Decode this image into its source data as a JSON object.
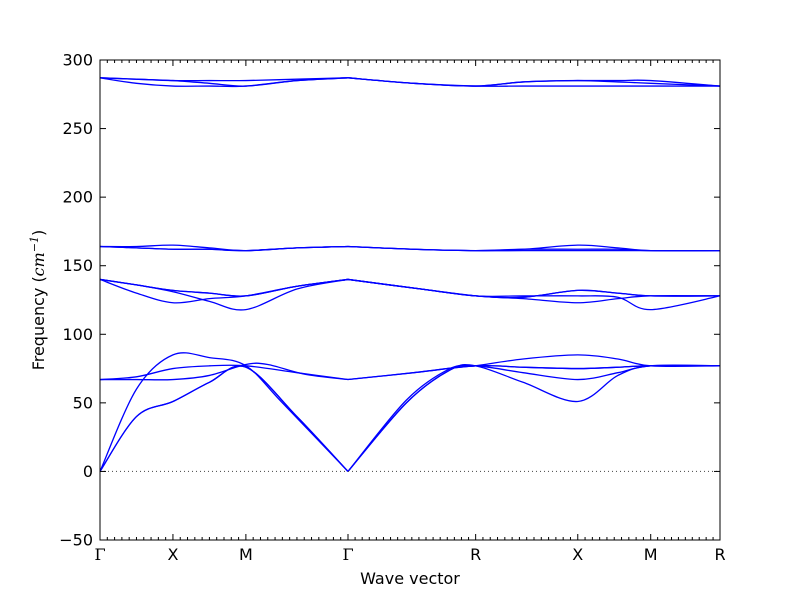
{
  "chart_data": {
    "type": "line",
    "title": "",
    "xlabel": "Wave vector",
    "ylabel_prefix": "Frequency (",
    "ylabel_unit_base": "cm",
    "ylabel_unit_exp": "−1",
    "ylabel_suffix": ")",
    "ylim": [
      -50,
      300
    ],
    "yticks": [
      -50,
      0,
      50,
      100,
      150,
      200,
      250,
      300
    ],
    "ytick_labels": [
      "−50",
      "0",
      "50",
      "100",
      "150",
      "200",
      "250",
      "300"
    ],
    "xlim": [
      0,
      8.5
    ],
    "xticks": [
      0,
      1,
      2,
      3.4,
      5.15,
      6.55,
      7.55,
      8.5
    ],
    "xtick_labels": [
      "Γ",
      "X",
      "M",
      "Γ",
      "R",
      "X",
      "M",
      "R"
    ],
    "grid": false,
    "legend": "none",
    "line_color": "#0000ff",
    "zero_line": 0,
    "bands": [
      [
        [
          0,
          0
        ],
        [
          0.5,
          40
        ],
        [
          1,
          51
        ],
        [
          1.5,
          65
        ],
        [
          2,
          76
        ],
        [
          2.7,
          40
        ],
        [
          3.4,
          0
        ],
        [
          4.2,
          50
        ],
        [
          4.8,
          74
        ],
        [
          5.15,
          77
        ],
        [
          5.8,
          65
        ],
        [
          6.55,
          51
        ],
        [
          7.1,
          70
        ],
        [
          7.55,
          77
        ],
        [
          8.5,
          77
        ]
      ],
      [
        [
          0,
          0
        ],
        [
          0.5,
          40
        ],
        [
          1,
          51
        ],
        [
          1.5,
          65
        ],
        [
          2,
          76
        ],
        [
          2.7,
          40
        ],
        [
          3.4,
          0
        ],
        [
          4.2,
          50
        ],
        [
          4.8,
          74
        ],
        [
          5.15,
          77
        ],
        [
          5.8,
          72
        ],
        [
          6.55,
          67
        ],
        [
          7.1,
          72
        ],
        [
          7.55,
          77
        ],
        [
          8.5,
          77
        ]
      ],
      [
        [
          0,
          0
        ],
        [
          0.5,
          60
        ],
        [
          1,
          85
        ],
        [
          1.5,
          83
        ],
        [
          2,
          77
        ],
        [
          2.5,
          50
        ],
        [
          3.4,
          0
        ],
        [
          4.2,
          52
        ],
        [
          4.8,
          75
        ],
        [
          5.15,
          77
        ],
        [
          5.8,
          82
        ],
        [
          6.55,
          85
        ],
        [
          7.1,
          82
        ],
        [
          7.55,
          77
        ],
        [
          8.5,
          77
        ]
      ],
      [
        [
          0,
          67
        ],
        [
          0.5,
          69
        ],
        [
          1,
          75
        ],
        [
          1.5,
          77
        ],
        [
          2,
          77
        ],
        [
          2.7,
          72
        ],
        [
          3.4,
          67
        ],
        [
          4.3,
          72
        ],
        [
          5.15,
          77
        ],
        [
          5.8,
          76
        ],
        [
          6.55,
          75
        ],
        [
          7.1,
          76
        ],
        [
          7.55,
          77
        ],
        [
          8.5,
          77
        ]
      ],
      [
        [
          0,
          67
        ],
        [
          0.5,
          67
        ],
        [
          1,
          67
        ],
        [
          1.5,
          70
        ],
        [
          2,
          78
        ],
        [
          2.3,
          78
        ],
        [
          2.8,
          71
        ],
        [
          3.4,
          67
        ],
        [
          4.3,
          72
        ],
        [
          5.15,
          77
        ],
        [
          5.8,
          76
        ],
        [
          6.55,
          75
        ],
        [
          7.1,
          76
        ],
        [
          7.55,
          77
        ],
        [
          8.5,
          77
        ]
      ],
      [
        [
          0,
          140
        ],
        [
          0.5,
          136
        ],
        [
          1,
          132
        ],
        [
          1.5,
          130
        ],
        [
          2,
          128
        ],
        [
          2.7,
          135
        ],
        [
          3.4,
          140
        ],
        [
          4.4,
          133
        ],
        [
          5.15,
          128
        ],
        [
          5.8,
          127
        ],
        [
          6.55,
          132
        ],
        [
          7.1,
          130
        ],
        [
          7.55,
          128
        ],
        [
          8.5,
          128
        ]
      ],
      [
        [
          0,
          140
        ],
        [
          0.5,
          136
        ],
        [
          1,
          132
        ],
        [
          1.5,
          130
        ],
        [
          2,
          128
        ],
        [
          2.7,
          135
        ],
        [
          3.4,
          140
        ],
        [
          4.4,
          133
        ],
        [
          5.15,
          128
        ],
        [
          5.8,
          127
        ],
        [
          6.55,
          132
        ],
        [
          7.1,
          130
        ],
        [
          7.55,
          128
        ],
        [
          8.5,
          128
        ]
      ],
      [
        [
          0,
          140
        ],
        [
          0.5,
          130
        ],
        [
          1,
          123
        ],
        [
          1.5,
          126
        ],
        [
          2,
          128
        ],
        [
          2.7,
          135
        ],
        [
          3.4,
          140
        ],
        [
          4.4,
          133
        ],
        [
          5.15,
          128
        ],
        [
          5.8,
          126
        ],
        [
          6.55,
          123
        ],
        [
          7.1,
          126
        ],
        [
          7.55,
          128
        ],
        [
          8.5,
          128
        ]
      ],
      [
        [
          0,
          140
        ],
        [
          0.5,
          136
        ],
        [
          1,
          131
        ],
        [
          1.5,
          124
        ],
        [
          2,
          118
        ],
        [
          2.7,
          133
        ],
        [
          3.4,
          140
        ],
        [
          4.4,
          133
        ],
        [
          5.15,
          128
        ],
        [
          5.8,
          128
        ],
        [
          6.55,
          128
        ],
        [
          7.1,
          127
        ],
        [
          7.55,
          118
        ],
        [
          8.5,
          128
        ]
      ],
      [
        [
          0,
          164
        ],
        [
          0.5,
          164
        ],
        [
          1,
          165
        ],
        [
          1.5,
          163
        ],
        [
          2,
          161
        ],
        [
          2.7,
          163
        ],
        [
          3.4,
          164
        ],
        [
          4.3,
          162
        ],
        [
          5.15,
          161
        ],
        [
          5.8,
          162
        ],
        [
          6.55,
          165
        ],
        [
          7.1,
          163
        ],
        [
          7.55,
          161
        ],
        [
          8.5,
          161
        ]
      ],
      [
        [
          0,
          164
        ],
        [
          0.5,
          163
        ],
        [
          1,
          162
        ],
        [
          1.5,
          162
        ],
        [
          2,
          161
        ],
        [
          2.7,
          163
        ],
        [
          3.4,
          164
        ],
        [
          4.3,
          162
        ],
        [
          5.15,
          161
        ],
        [
          5.8,
          162
        ],
        [
          6.55,
          162
        ],
        [
          7.1,
          162
        ],
        [
          7.55,
          161
        ],
        [
          8.5,
          161
        ]
      ],
      [
        [
          0,
          164
        ],
        [
          0.5,
          163
        ],
        [
          1,
          162
        ],
        [
          1.5,
          162
        ],
        [
          2,
          161
        ],
        [
          2.7,
          163
        ],
        [
          3.4,
          164
        ],
        [
          4.3,
          162
        ],
        [
          5.15,
          161
        ],
        [
          5.8,
          161
        ],
        [
          6.55,
          161
        ],
        [
          7.1,
          161
        ],
        [
          7.55,
          161
        ],
        [
          8.5,
          161
        ]
      ],
      [
        [
          0,
          287
        ],
        [
          0.5,
          286
        ],
        [
          1,
          285
        ],
        [
          1.5,
          285
        ],
        [
          2,
          285
        ],
        [
          2.7,
          286
        ],
        [
          3.4,
          287
        ],
        [
          4.3,
          283
        ],
        [
          5.15,
          281
        ],
        [
          5.8,
          284
        ],
        [
          6.55,
          285
        ],
        [
          7.1,
          285
        ],
        [
          7.55,
          285
        ],
        [
          8.5,
          281
        ]
      ],
      [
        [
          0,
          287
        ],
        [
          0.5,
          286
        ],
        [
          1,
          285
        ],
        [
          1.5,
          283
        ],
        [
          2,
          281
        ],
        [
          2.7,
          285
        ],
        [
          3.4,
          287
        ],
        [
          4.3,
          283
        ],
        [
          5.15,
          281
        ],
        [
          5.8,
          284
        ],
        [
          6.55,
          285
        ],
        [
          7.1,
          284
        ],
        [
          7.55,
          283
        ],
        [
          8.5,
          281
        ]
      ],
      [
        [
          0,
          287
        ],
        [
          0.5,
          283
        ],
        [
          1,
          281
        ],
        [
          1.5,
          281
        ],
        [
          2,
          281
        ],
        [
          2.7,
          285
        ],
        [
          3.4,
          287
        ],
        [
          4.3,
          283
        ],
        [
          5.15,
          281
        ],
        [
          5.8,
          281
        ],
        [
          6.55,
          281
        ],
        [
          7.1,
          281
        ],
        [
          7.55,
          281
        ],
        [
          8.5,
          281
        ]
      ]
    ]
  }
}
